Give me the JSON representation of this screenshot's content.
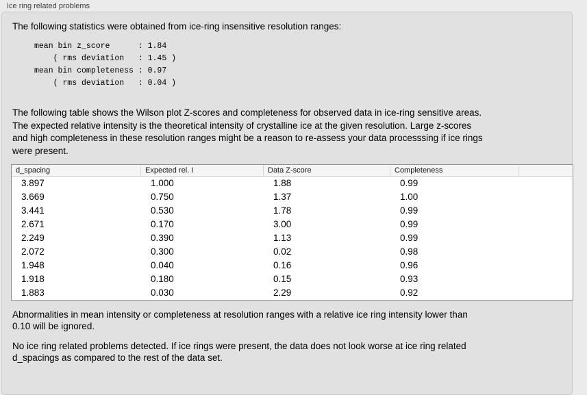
{
  "window": {
    "section_title": "Ice ring related problems"
  },
  "intro": "The following statistics were obtained from ice-ring insensitive resolution ranges:",
  "statistics": {
    "mean_bin_z_score": "1.84",
    "z_score_rms_deviation": "1.45",
    "mean_bin_completeness": "0.97",
    "completeness_rms_deviation": "0.04",
    "block_text": "mean bin z_score      : 1.84\n    ( rms deviation   : 1.45 )\nmean bin completeness : 0.97\n    ( rms deviation   : 0.04 )"
  },
  "description": "The following table shows the Wilson plot Z-scores and completeness for observed data in ice-ring sensitive areas.\nThe expected relative intensity is the theoretical intensity of crystalline ice at the given resolution. Large z-scores\nand high completeness in these resolution ranges might be a reason to re-assess your data processsing if ice rings\nwere present.",
  "table": {
    "columns": [
      "d_spacing",
      "Expected rel. I",
      "Data Z-score",
      "Completeness"
    ],
    "rows": [
      [
        "3.897",
        "1.000",
        "1.88",
        "0.99"
      ],
      [
        "3.669",
        "0.750",
        "1.37",
        "1.00"
      ],
      [
        "3.441",
        "0.530",
        "1.78",
        "0.99"
      ],
      [
        "2.671",
        "0.170",
        "3.00",
        "0.99"
      ],
      [
        "2.249",
        "0.390",
        "1.13",
        "0.99"
      ],
      [
        "2.072",
        "0.300",
        "0.02",
        "0.98"
      ],
      [
        "1.948",
        "0.040",
        "0.16",
        "0.96"
      ],
      [
        "1.918",
        "0.180",
        "0.15",
        "0.93"
      ],
      [
        "1.883",
        "0.030",
        "2.29",
        "0.92"
      ]
    ]
  },
  "notes": [
    "Abnormalities in mean intensity or completeness at resolution ranges with a relative ice ring intensity lower than\n0.10 will be ignored.",
    "No ice ring related problems detected. If ice rings were present, the data does not look worse at ice ring related\nd_spacings as compared to the rest of the data set."
  ],
  "colors": {
    "page_bg": "#ebebeb",
    "panel_bg": "#e1e1e1",
    "table_bg": "#ffffff",
    "table_border": "#8c8c8c"
  }
}
